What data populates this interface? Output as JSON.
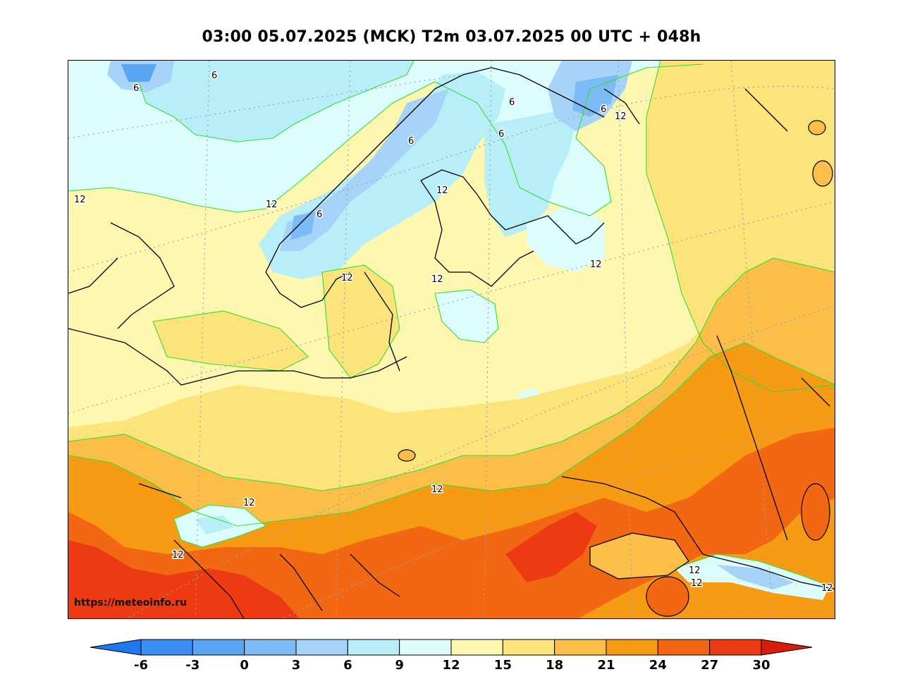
{
  "title": "03:00 05.07.2025 (MCK) T2m 03.07.2025 00 UTC + 048h",
  "watermark": "https://meteoinfo.ru",
  "colors": {
    "bins": [
      {
        "from": -9,
        "to": -6,
        "color": "#1e78f0"
      },
      {
        "from": -6,
        "to": -3,
        "color": "#3c8ef2"
      },
      {
        "from": -3,
        "to": 0,
        "color": "#5aa5f4"
      },
      {
        "from": 0,
        "to": 3,
        "color": "#7dbbf6"
      },
      {
        "from": 3,
        "to": 6,
        "color": "#a6d3f7"
      },
      {
        "from": 6,
        "to": 9,
        "color": "#b8eef8"
      },
      {
        "from": 9,
        "to": 12,
        "color": "#ddfdfd"
      },
      {
        "from": 12,
        "to": 15,
        "color": "#fdf7b0"
      },
      {
        "from": 15,
        "to": 18,
        "color": "#fde47a"
      },
      {
        "from": 18,
        "to": 21,
        "color": "#fbbe48"
      },
      {
        "from": 21,
        "to": 24,
        "color": "#f79a14"
      },
      {
        "from": 24,
        "to": 27,
        "color": "#f26812"
      },
      {
        "from": 27,
        "to": 30,
        "color": "#ee3a12"
      },
      {
        "from": 30,
        "to": 33,
        "color": "#d81e0a"
      }
    ],
    "contour_line": "#33dd33",
    "coastline": "#000000",
    "graticule": "#9aa0b0"
  },
  "colorbar": {
    "ticks": [
      "-6",
      "-3",
      "0",
      "3",
      "6",
      "9",
      "12",
      "15",
      "18",
      "21",
      "24",
      "27",
      "30"
    ]
  },
  "contour_labels": [
    "6",
    "6",
    "6",
    "6",
    "6",
    "6",
    "6",
    "12",
    "12",
    "12",
    "12",
    "12",
    "12",
    "12",
    "12",
    "12",
    "12",
    "12",
    "12",
    "12"
  ]
}
